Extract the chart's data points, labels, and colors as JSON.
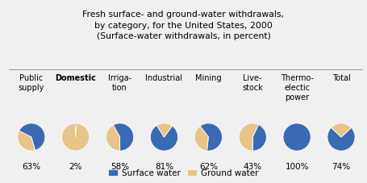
{
  "title_line1": "Fresh surface- and ground-water withdrawals,",
  "title_line2": "by category, for the United States, 2000",
  "title_line3": "(Surface-water withdrawals, in percent)",
  "categories": [
    "Public\nsupply",
    "Domestic",
    "Irriga-\ntion",
    "Industrial",
    "Mining",
    "Live-\nstock",
    "Thermo-\nelectic\npower",
    "Total"
  ],
  "surface_water_pct": [
    63,
    2,
    58,
    81,
    62,
    43,
    100,
    74
  ],
  "percentages": [
    "63%",
    "2%",
    "58%",
    "81%",
    "62%",
    "43%",
    "100%",
    "74%"
  ],
  "start_angles": [
    153,
    93,
    119,
    54,
    127,
    65,
    90,
    43
  ],
  "surface_color": "#3a6ab4",
  "ground_color": "#e8c48a",
  "background_color": "#f0f0f0",
  "title_fontsize": 7.8,
  "label_fontsize": 7.0,
  "pct_fontsize": 7.5,
  "legend_fontsize": 7.5,
  "domestic_bold": true
}
